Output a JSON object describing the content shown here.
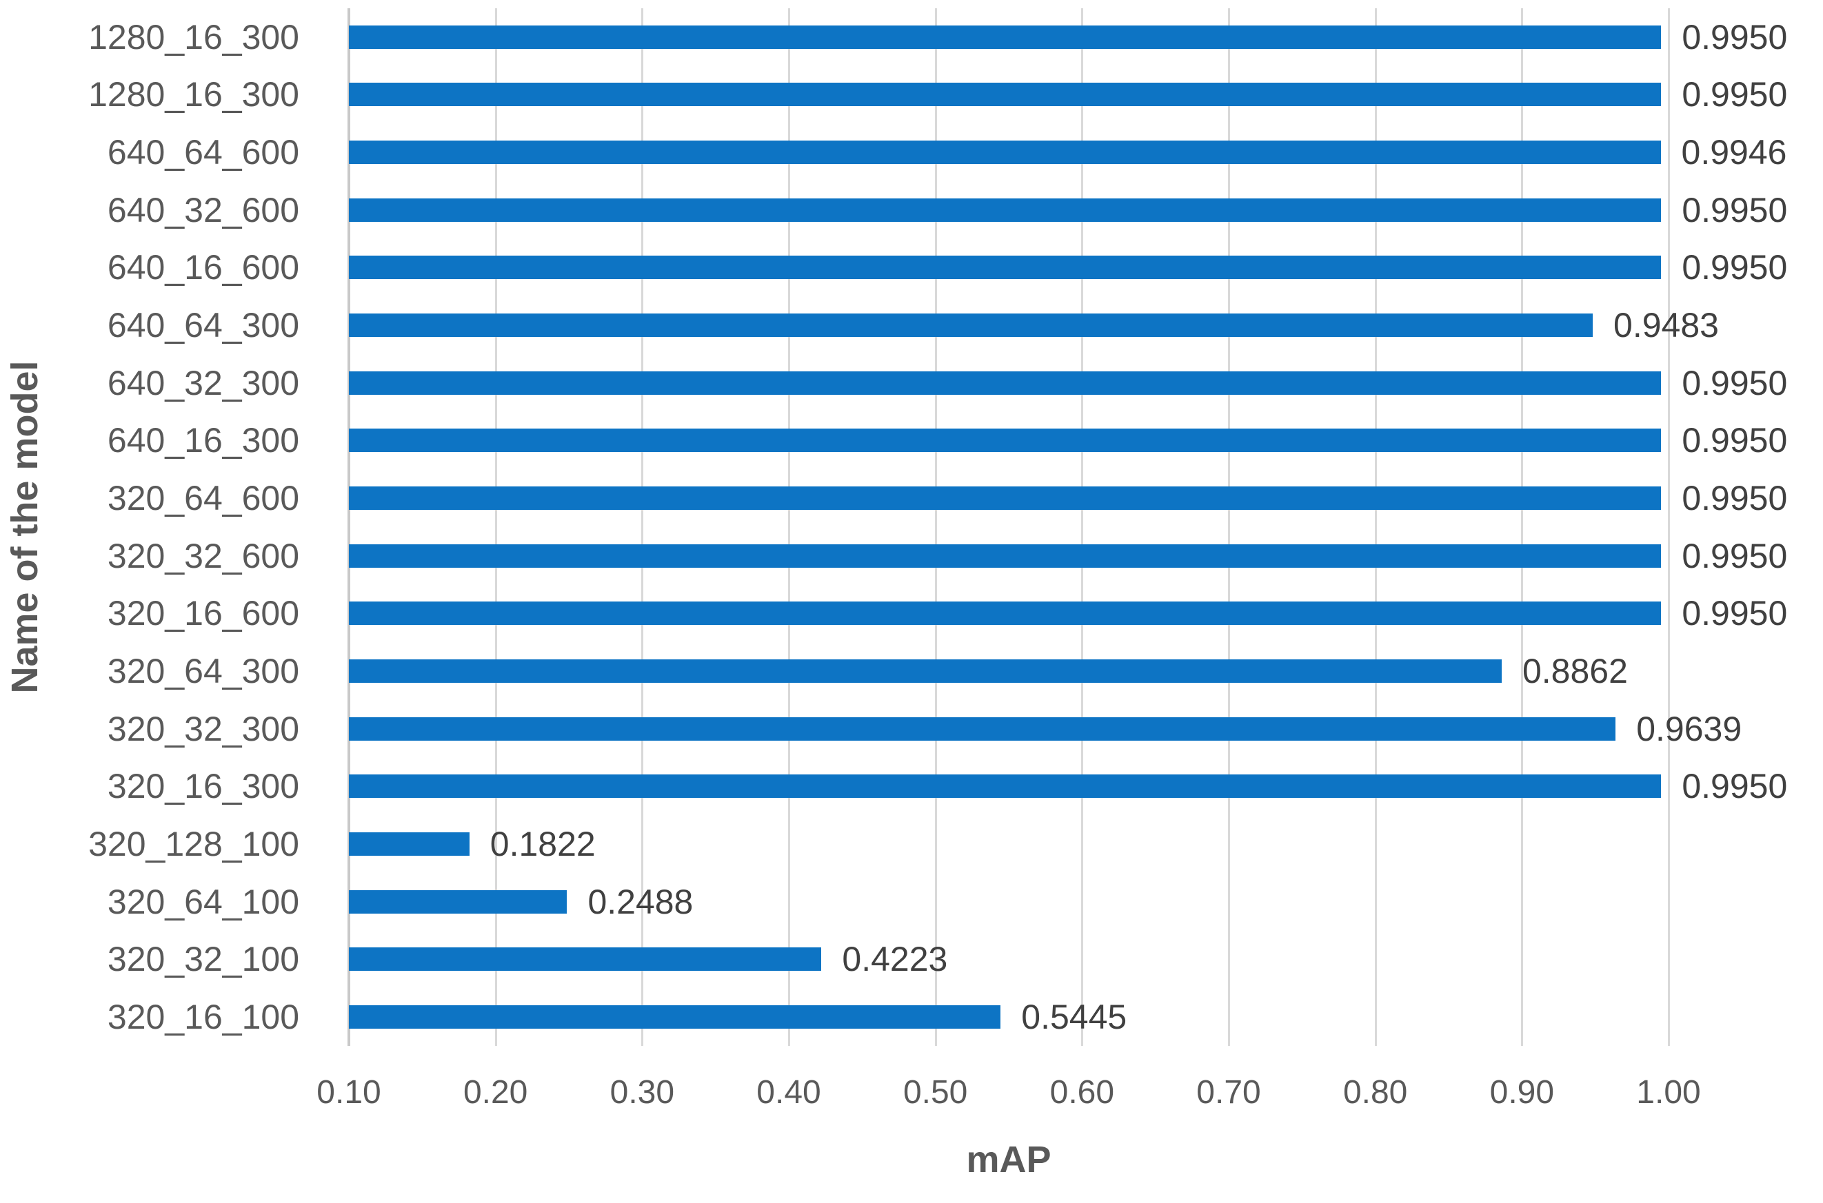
{
  "chart_data": {
    "type": "bar",
    "orientation": "horizontal",
    "title": "",
    "xlabel": "mAP",
    "ylabel": "Name of the model",
    "categories": [
      "1280_16_300",
      "1280_16_300",
      "640_64_600",
      "640_32_600",
      "640_16_600",
      "640_64_300",
      "640_32_300",
      "640_16_300",
      "320_64_600",
      "320_32_600",
      "320_16_600",
      "320_64_300",
      "320_32_300",
      "320_16_300",
      "320_128_100",
      "320_64_100",
      "320_32_100",
      "320_16_100"
    ],
    "values": [
      0.995,
      0.995,
      0.9946,
      0.995,
      0.995,
      0.9483,
      0.995,
      0.995,
      0.995,
      0.995,
      0.995,
      0.8862,
      0.9639,
      0.995,
      0.1822,
      0.2488,
      0.4223,
      0.5445
    ],
    "value_labels": [
      "0.9950",
      "0.9950",
      "0.9946",
      "0.9950",
      "0.9950",
      "0.9483",
      "0.9950",
      "0.9950",
      "0.9950",
      "0.9950",
      "0.9950",
      "0.8862",
      "0.9639",
      "0.9950",
      "0.1822",
      "0.2488",
      "0.4223",
      "0.5445"
    ],
    "xticks": [
      "0.10",
      "0.20",
      "0.30",
      "0.40",
      "0.50",
      "0.60",
      "0.70",
      "0.80",
      "0.90",
      "1.00"
    ],
    "xlim": [
      0.1,
      1.0
    ],
    "grid": "vertical-gridlines-at-each-tick",
    "legend": "none",
    "colors": {
      "bar": "#0d74c4",
      "gridline": "#d9d9d9",
      "axis_line": "#c9c9c9",
      "tick_label": "#595959",
      "value_label": "#404040",
      "axis_title": "#595959",
      "background": "#ffffff"
    }
  }
}
